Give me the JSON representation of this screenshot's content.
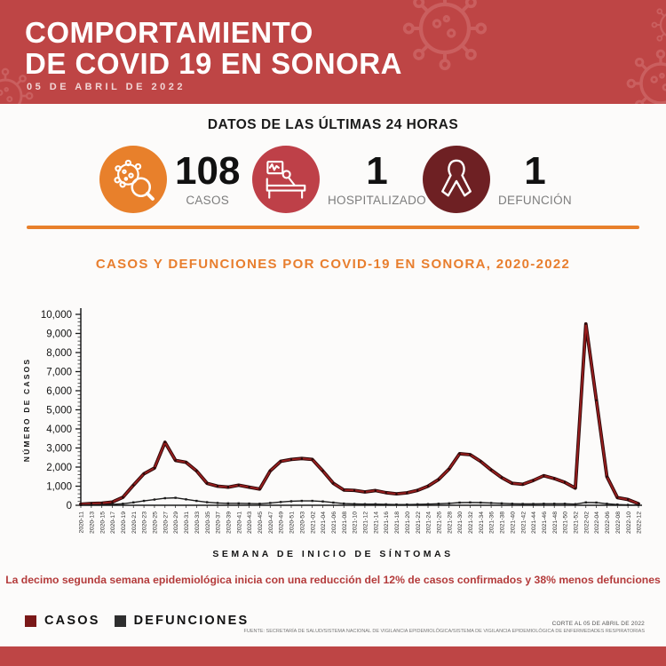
{
  "header": {
    "title_line1": "COMPORTAMIENTO",
    "title_line2": "DE COVID 19 EN SONORA",
    "date": "05 DE ABRIL DE 2022"
  },
  "stats": {
    "heading": "DATOS DE LAS ÚLTIMAS 24 HORAS",
    "items": [
      {
        "value": "108",
        "label": "CASOS",
        "icon": "virus-search-icon",
        "color": "#E8802B"
      },
      {
        "value": "1",
        "label": "HOSPITALIZADO",
        "icon": "hospital-bed-icon",
        "color": "#BE4048"
      },
      {
        "value": "1",
        "label": "DEFUNCIÓN",
        "icon": "awareness-ribbon-icon",
        "color": "#6E2023"
      }
    ]
  },
  "chart_data": {
    "type": "line",
    "title": "CASOS Y DEFUNCIONES POR COVID-19 EN SONORA, 2020-2022",
    "xlabel": "SEMANA DE INICIO DE SÍNTOMAS",
    "ylabel": "NÚMERO DE CASOS",
    "ylim": [
      0,
      10000
    ],
    "y_tick_step": 1000,
    "y_minor_step": 200,
    "grid": false,
    "legend_position": "bottom-left",
    "categories": [
      "2020-11",
      "2020-13",
      "2020-15",
      "2020-17",
      "2020-19",
      "2020-21",
      "2020-23",
      "2020-25",
      "2020-27",
      "2020-29",
      "2020-31",
      "2020-33",
      "2020-35",
      "2020-37",
      "2020-39",
      "2020-41",
      "2020-43",
      "2020-45",
      "2020-47",
      "2020-49",
      "2020-51",
      "2020-53",
      "2021-02",
      "2021-04",
      "2021-06",
      "2021-08",
      "2021-10",
      "2021-12",
      "2021-14",
      "2021-16",
      "2021-18",
      "2021-20",
      "2021-22",
      "2021-24",
      "2021-26",
      "2021-28",
      "2021-30",
      "2021-32",
      "2021-34",
      "2021-36",
      "2021-38",
      "2021-40",
      "2021-42",
      "2021-44",
      "2021-46",
      "2021-48",
      "2021-50",
      "2021-52",
      "2022-02",
      "2022-04",
      "2022-06",
      "2022-08",
      "2022-10",
      "2022-12"
    ],
    "series": [
      {
        "name": "CASOS",
        "color": "#9A1E1E",
        "edge_color": "#2E0909",
        "legend_color": "#7A1818",
        "values": [
          60,
          90,
          110,
          170,
          420,
          1050,
          1650,
          1950,
          3300,
          2350,
          2250,
          1800,
          1150,
          1000,
          950,
          1050,
          950,
          850,
          1800,
          2300,
          2400,
          2450,
          2400,
          1800,
          1150,
          800,
          780,
          700,
          770,
          660,
          600,
          650,
          780,
          1000,
          1350,
          1900,
          2700,
          2650,
          2300,
          1850,
          1450,
          1150,
          1100,
          1300,
          1550,
          1400,
          1200,
          900,
          9500,
          5500,
          1500,
          400,
          300,
          80
        ]
      },
      {
        "name": "DEFUNCIONES",
        "color": "#1B1B1B",
        "legend_color": "#2E2E2E",
        "values": [
          15,
          20,
          30,
          45,
          80,
          150,
          230,
          300,
          370,
          390,
          310,
          230,
          160,
          120,
          100,
          100,
          90,
          80,
          120,
          170,
          210,
          230,
          230,
          200,
          140,
          90,
          70,
          60,
          60,
          50,
          40,
          40,
          50,
          60,
          80,
          100,
          140,
          150,
          140,
          120,
          100,
          80,
          70,
          70,
          80,
          80,
          80,
          60,
          150,
          140,
          80,
          40,
          20,
          5
        ]
      }
    ]
  },
  "note": {
    "text": "La decimo segunda semana epidemiológica inicia con una reducción del 12% de casos confirmados y 38% menos defunciones"
  },
  "footer": {
    "corte": "CORTE AL 05 DE ABRIL DE 2022",
    "fuente": "FUENTE: SECRETARÍA DE SALUD/SISTEMA NACIONAL DE VIGILANCIA EPIDEMIOLÓGICA/SISTEMA DE VIGILANCIA EPIDEMIOLÓGICA DE ENFERMEDADES RESPIRATORIAS"
  },
  "colors": {
    "brand_red": "#BE4545",
    "orange": "#E8802B",
    "chart_title_orange": "#E87E2E",
    "note_red": "#B43B3B"
  }
}
